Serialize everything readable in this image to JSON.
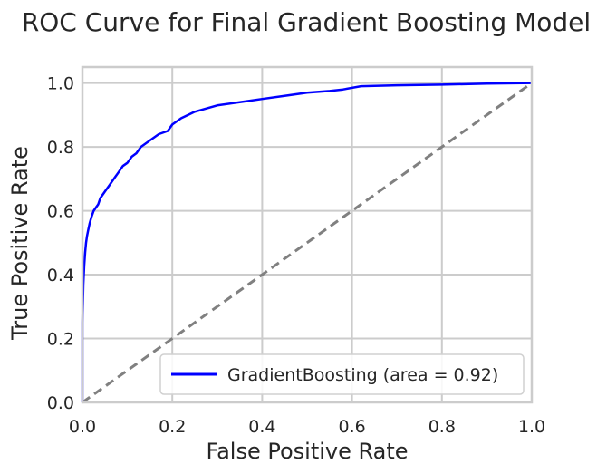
{
  "chart_data": {
    "type": "line",
    "title": "ROC Curve for Final Gradient Boosting Model",
    "xlabel": "False Positive Rate",
    "ylabel": "True Positive Rate",
    "xlim": [
      0.0,
      1.0
    ],
    "ylim": [
      0.0,
      1.05
    ],
    "x_ticks": [
      0.0,
      0.2,
      0.4,
      0.6,
      0.8,
      1.0
    ],
    "y_ticks": [
      0.0,
      0.2,
      0.4,
      0.6,
      0.8,
      1.0
    ],
    "x_tick_labels": [
      "0.0",
      "0.2",
      "0.4",
      "0.6",
      "0.8",
      "1.0"
    ],
    "y_tick_labels": [
      "0.0",
      "0.2",
      "0.4",
      "0.6",
      "0.8",
      "1.0"
    ],
    "grid": true,
    "legend_position": "lower-right",
    "series": [
      {
        "name": "GradientBoosting (area = 0.92)",
        "color": "#0000ff",
        "style": "solid",
        "x": [
          0.0,
          0.0,
          0.002,
          0.004,
          0.006,
          0.008,
          0.01,
          0.013,
          0.016,
          0.02,
          0.025,
          0.03,
          0.035,
          0.04,
          0.05,
          0.06,
          0.07,
          0.08,
          0.09,
          0.1,
          0.11,
          0.12,
          0.13,
          0.15,
          0.17,
          0.19,
          0.2,
          0.22,
          0.25,
          0.3,
          0.35,
          0.4,
          0.45,
          0.5,
          0.55,
          0.58,
          0.62,
          0.7,
          0.8,
          0.9,
          1.0
        ],
        "y": [
          0.0,
          0.25,
          0.37,
          0.43,
          0.47,
          0.5,
          0.52,
          0.54,
          0.56,
          0.58,
          0.6,
          0.61,
          0.62,
          0.64,
          0.66,
          0.68,
          0.7,
          0.72,
          0.74,
          0.75,
          0.77,
          0.78,
          0.8,
          0.82,
          0.84,
          0.85,
          0.87,
          0.89,
          0.91,
          0.93,
          0.94,
          0.95,
          0.96,
          0.97,
          0.975,
          0.98,
          0.99,
          0.993,
          0.995,
          0.998,
          1.0
        ]
      },
      {
        "name": "",
        "color": "#808080",
        "style": "dashed",
        "x": [
          0.0,
          1.0
        ],
        "y": [
          0.0,
          1.0
        ]
      }
    ],
    "legend": [
      {
        "label": "GradientBoosting (area = 0.92)",
        "color": "#0000ff"
      }
    ]
  }
}
